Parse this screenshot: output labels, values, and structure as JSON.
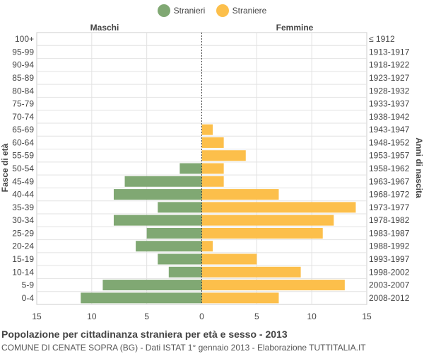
{
  "legend": [
    {
      "label": "Stranieri",
      "color": "#80a873"
    },
    {
      "label": "Straniere",
      "color": "#fcbf4b"
    }
  ],
  "header": {
    "left": "Maschi",
    "right": "Femmine"
  },
  "footer": {
    "title": "Popolazione per cittadinanza straniera per età e sesso - 2013",
    "subtitle": "COMUNE DI CENATE SOPRA (BG) - Dati ISTAT 1° gennaio 2013 - Elaborazione TUTTITALIA.IT"
  },
  "chart_data": {
    "type": "bar",
    "orientation": "horizontal-pyramid",
    "ylabel": "Fasce di età",
    "ylabel_right": "Anni di nascita",
    "xlim": [
      -15,
      15
    ],
    "x_ticks": [
      "15",
      "10",
      "5",
      "0",
      "5",
      "10",
      "15"
    ],
    "categories": [
      "100+",
      "95-99",
      "90-94",
      "85-89",
      "80-84",
      "75-79",
      "70-74",
      "65-69",
      "60-64",
      "55-59",
      "50-54",
      "45-49",
      "40-44",
      "35-39",
      "30-34",
      "25-29",
      "20-24",
      "15-19",
      "10-14",
      "5-9",
      "0-4"
    ],
    "birth_years": [
      "≤ 1912",
      "1913-1917",
      "1918-1922",
      "1923-1927",
      "1928-1932",
      "1933-1937",
      "1938-1942",
      "1943-1947",
      "1948-1952",
      "1953-1957",
      "1958-1962",
      "1963-1967",
      "1968-1972",
      "1973-1977",
      "1978-1982",
      "1983-1987",
      "1988-1992",
      "1993-1997",
      "1998-2002",
      "2003-2007",
      "2008-2012"
    ],
    "series": [
      {
        "name": "Stranieri",
        "color": "#80a873",
        "values": [
          0,
          0,
          0,
          0,
          0,
          0,
          0,
          0,
          0,
          0,
          2,
          7,
          8,
          4,
          8,
          5,
          6,
          4,
          3,
          9,
          11
        ]
      },
      {
        "name": "Straniere",
        "color": "#fcbf4b",
        "values": [
          0,
          0,
          0,
          0,
          0,
          0,
          0,
          1,
          2,
          4,
          2,
          2,
          7,
          14,
          12,
          11,
          1,
          5,
          9,
          13,
          7
        ]
      }
    ],
    "grid": true
  }
}
